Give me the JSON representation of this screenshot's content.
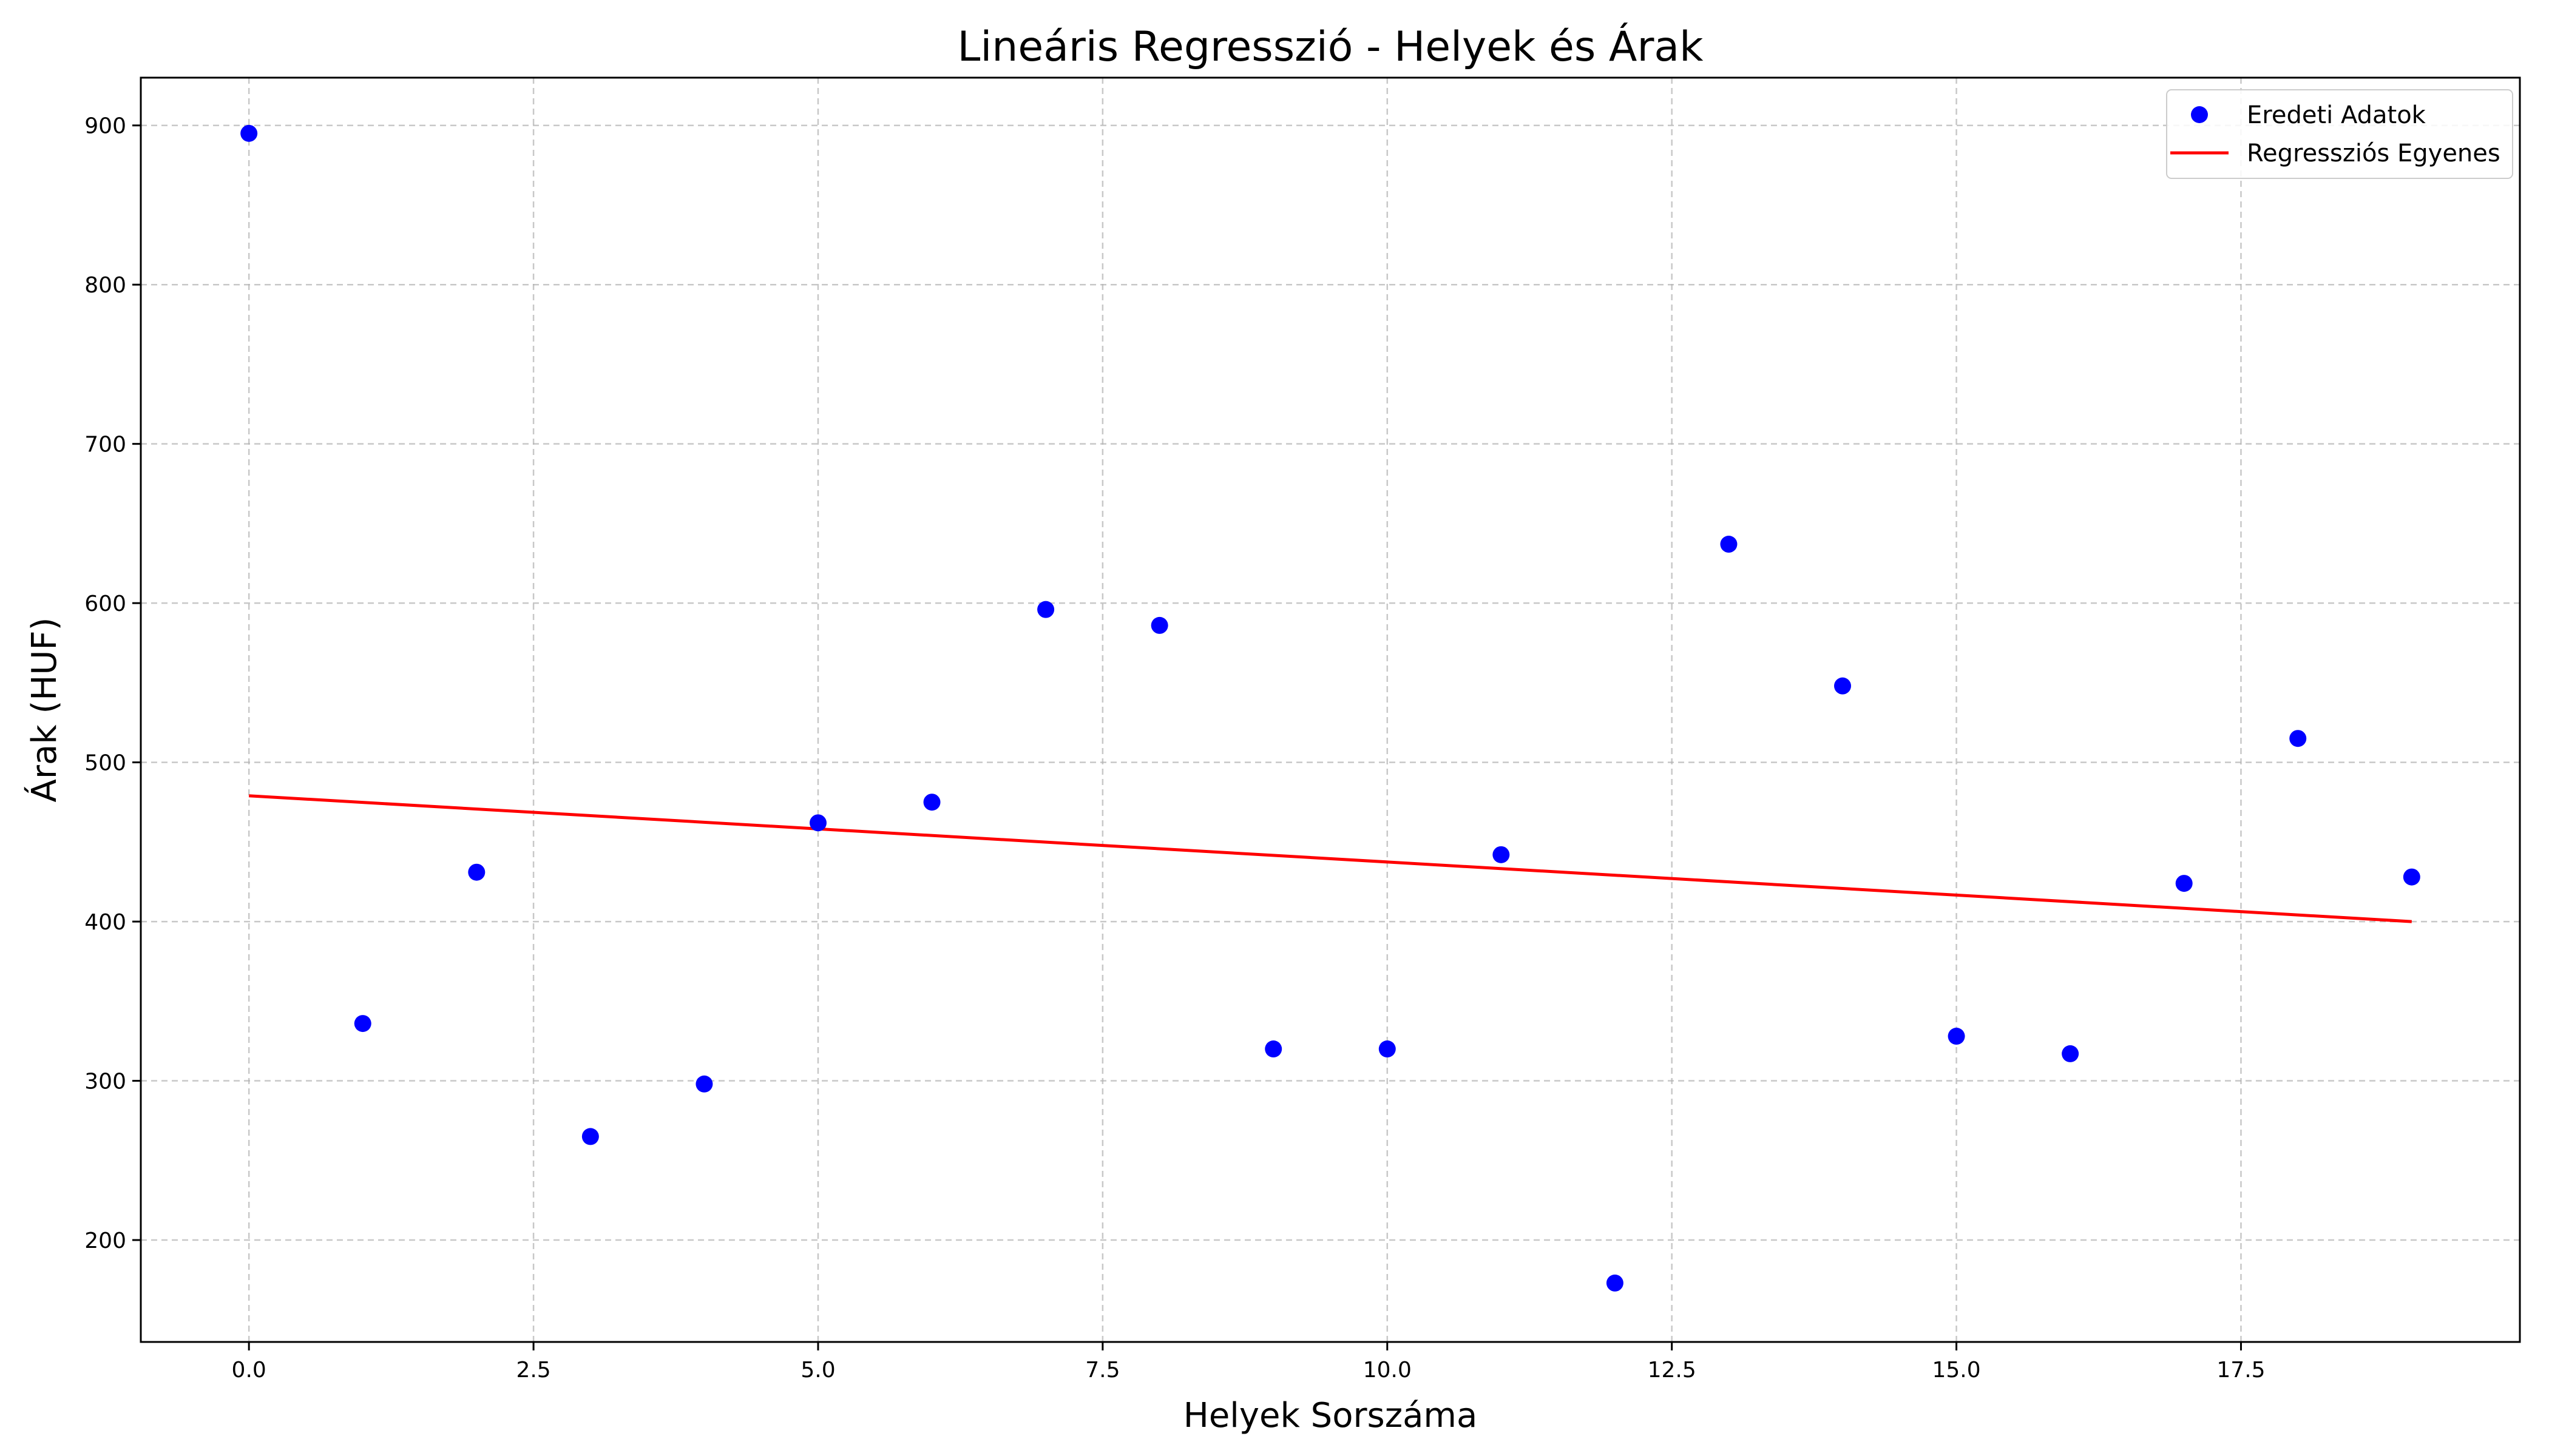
{
  "chart_data": {
    "type": "scatter",
    "title": "Lineáris Regresszió - Helyek és Árak",
    "xlabel": "Helyek Sorszáma",
    "ylabel": "Árak (HUF)",
    "xlim": [
      -0.95,
      19.95
    ],
    "ylim": [
      136,
      930
    ],
    "x_ticks": [
      0.0,
      2.5,
      5.0,
      7.5,
      10.0,
      12.5,
      15.0,
      17.5
    ],
    "x_tick_labels": [
      "0.0",
      "2.5",
      "5.0",
      "7.5",
      "10.0",
      "12.5",
      "15.0",
      "17.5"
    ],
    "y_ticks": [
      200,
      300,
      400,
      500,
      600,
      700,
      800,
      900
    ],
    "y_tick_labels": [
      "200",
      "300",
      "400",
      "500",
      "600",
      "700",
      "800",
      "900"
    ],
    "grid": true,
    "legend_position": "top-right",
    "series": [
      {
        "name": "Eredeti Adatok",
        "kind": "scatter",
        "color": "#0000ff",
        "x": [
          0,
          1,
          2,
          3,
          4,
          5,
          6,
          7,
          8,
          9,
          10,
          11,
          12,
          13,
          14,
          15,
          16,
          17,
          18,
          19
        ],
        "y": [
          895,
          336,
          431,
          265,
          298,
          462,
          475,
          596,
          586,
          320,
          320,
          442,
          173,
          637,
          548,
          328,
          317,
          424,
          515,
          428
        ]
      },
      {
        "name": "Regressziós Egyenes",
        "kind": "line",
        "color": "#ff0000",
        "x": [
          0,
          19
        ],
        "y": [
          479,
          400
        ]
      }
    ]
  }
}
